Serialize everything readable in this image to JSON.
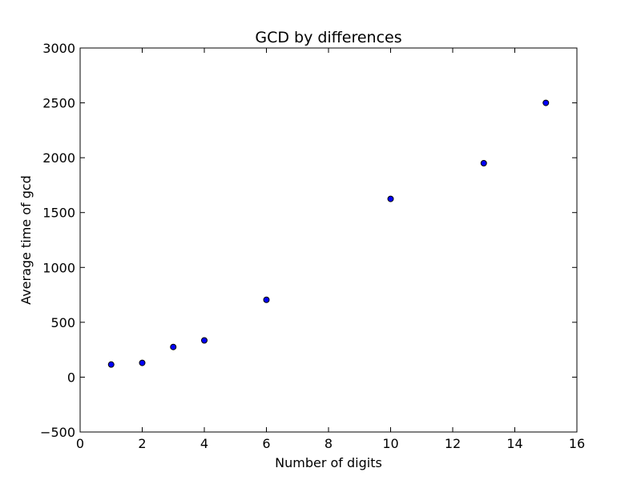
{
  "chart_data": {
    "type": "scatter",
    "title": "GCD by differences",
    "xlabel": "Number of digits",
    "ylabel": "Average time of gcd",
    "xlim": [
      0,
      16
    ],
    "ylim": [
      -500,
      3000
    ],
    "xticks": [
      0,
      2,
      4,
      6,
      8,
      10,
      12,
      14,
      16
    ],
    "yticks": [
      -500,
      0,
      500,
      1000,
      1500,
      2000,
      2500,
      3000
    ],
    "x": [
      1,
      2,
      3,
      4,
      6,
      10,
      13,
      15
    ],
    "y": [
      115,
      130,
      275,
      335,
      705,
      1625,
      1950,
      2500
    ],
    "marker_color": "#0000ff",
    "marker_edge": "#000000",
    "grid": false,
    "legend": "none"
  }
}
